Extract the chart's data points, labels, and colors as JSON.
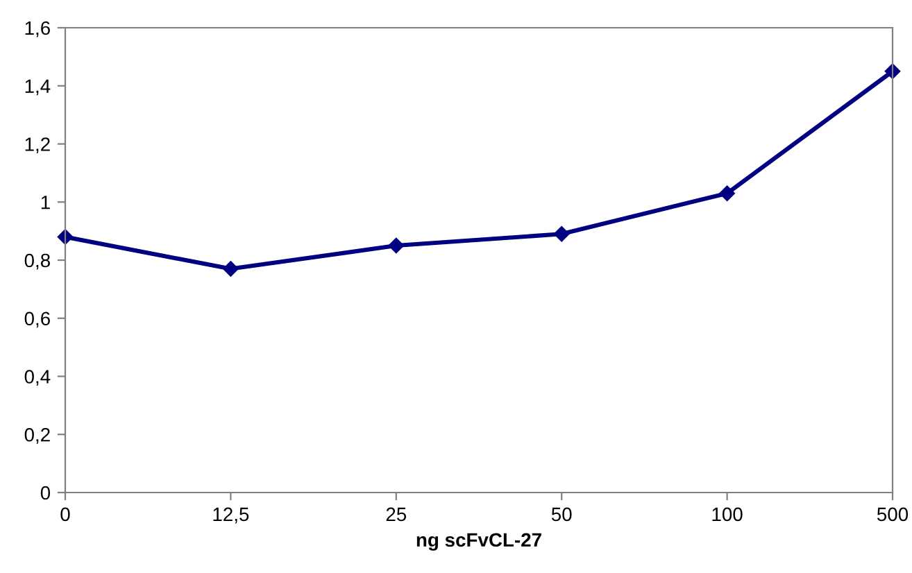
{
  "chart_data": {
    "type": "line",
    "xlabel": "ng scFvCL-27",
    "categories": [
      "0",
      "12,5",
      "25",
      "50",
      "100",
      "500"
    ],
    "series": [
      {
        "color": "#000080",
        "values": [
          0.88,
          0.77,
          0.85,
          0.89,
          1.03,
          1.45
        ]
      }
    ],
    "ylim": [
      0,
      1.6
    ],
    "yticks": [
      {
        "value": 0,
        "label": "0"
      },
      {
        "value": 0.2,
        "label": "0,2"
      },
      {
        "value": 0.4,
        "label": "0,4"
      },
      {
        "value": 0.6,
        "label": "0,6"
      },
      {
        "value": 0.8,
        "label": "0,8"
      },
      {
        "value": 1,
        "label": "1"
      },
      {
        "value": 1.2,
        "label": "1,2"
      },
      {
        "value": 1.4,
        "label": "1,4"
      },
      {
        "value": 1.6,
        "label": "1,6"
      }
    ],
    "marker": "diamond",
    "line_style": "solid",
    "grid": false,
    "legend": false
  }
}
